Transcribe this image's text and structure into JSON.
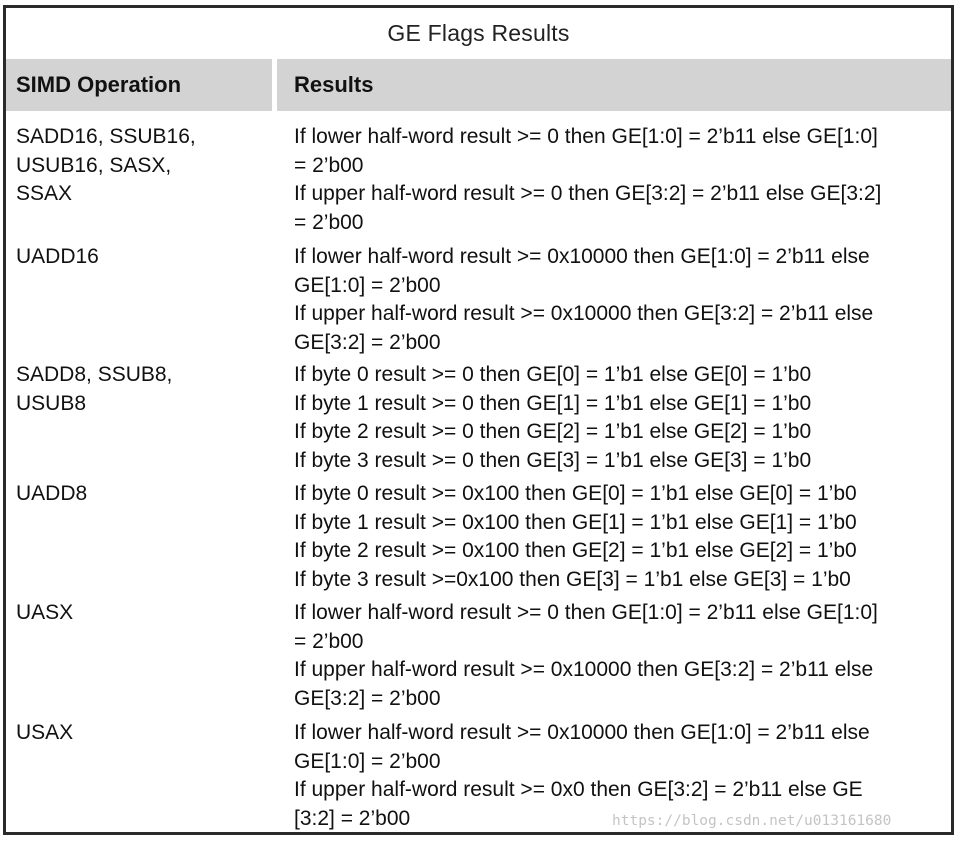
{
  "table": {
    "title": "GE Flags Results",
    "header": {
      "operation": "SIMD Operation",
      "results": "Results"
    },
    "rows": [
      {
        "operation_lines": [
          "SADD16, SSUB16,",
          "USUB16, SASX,",
          "SSAX"
        ],
        "result_lines": [
          "If lower half-word result >= 0 then GE[1:0] = 2’b11 else GE[1:0]",
          "= 2’b00",
          "If upper half-word result >= 0 then GE[3:2] = 2’b11 else GE[3:2]",
          "= 2’b00"
        ]
      },
      {
        "operation_lines": [
          "UADD16"
        ],
        "result_lines": [
          "If lower half-word result >= 0x10000 then GE[1:0] = 2’b11 else",
          "GE[1:0] = 2’b00",
          "If upper half-word result >= 0x10000 then GE[3:2] = 2’b11 else",
          "GE[3:2] = 2’b00"
        ]
      },
      {
        "operation_lines": [
          "SADD8, SSUB8,",
          "USUB8"
        ],
        "result_lines": [
          "If byte 0 result >= 0 then GE[0] = 1’b1 else GE[0] = 1’b0",
          "If byte 1 result >= 0 then GE[1] = 1’b1 else GE[1] = 1’b0",
          "If byte 2 result >= 0 then GE[2] = 1’b1 else GE[2] = 1’b0",
          "If byte 3 result >= 0 then GE[3] = 1’b1 else GE[3] = 1’b0"
        ]
      },
      {
        "operation_lines": [
          "UADD8"
        ],
        "result_lines": [
          "If byte 0 result >= 0x100 then GE[0] = 1’b1 else GE[0] = 1’b0",
          "If byte 1 result >= 0x100 then GE[1] = 1’b1 else GE[1] = 1’b0",
          "If byte 2 result >= 0x100 then GE[2] = 1’b1 else GE[2] = 1’b0",
          "If byte 3 result >=0x100 then GE[3] = 1’b1 else GE[3] = 1’b0"
        ]
      },
      {
        "operation_lines": [
          "UASX"
        ],
        "result_lines": [
          "If lower half-word result >= 0 then GE[1:0] = 2’b11 else GE[1:0]",
          "= 2’b00",
          "If upper half-word result >= 0x10000 then GE[3:2] = 2’b11 else",
          "GE[3:2] = 2’b00"
        ]
      },
      {
        "operation_lines": [
          "USAX"
        ],
        "result_lines": [
          "If lower half-word result >= 0x10000 then GE[1:0] = 2’b11 else",
          "GE[1:0] = 2’b00",
          "If upper half-word result >= 0x0 then GE[3:2] = 2’b11 else GE",
          "[3:2] = 2’b00"
        ]
      }
    ]
  },
  "watermark": "https://blog.csdn.net/u013161680"
}
